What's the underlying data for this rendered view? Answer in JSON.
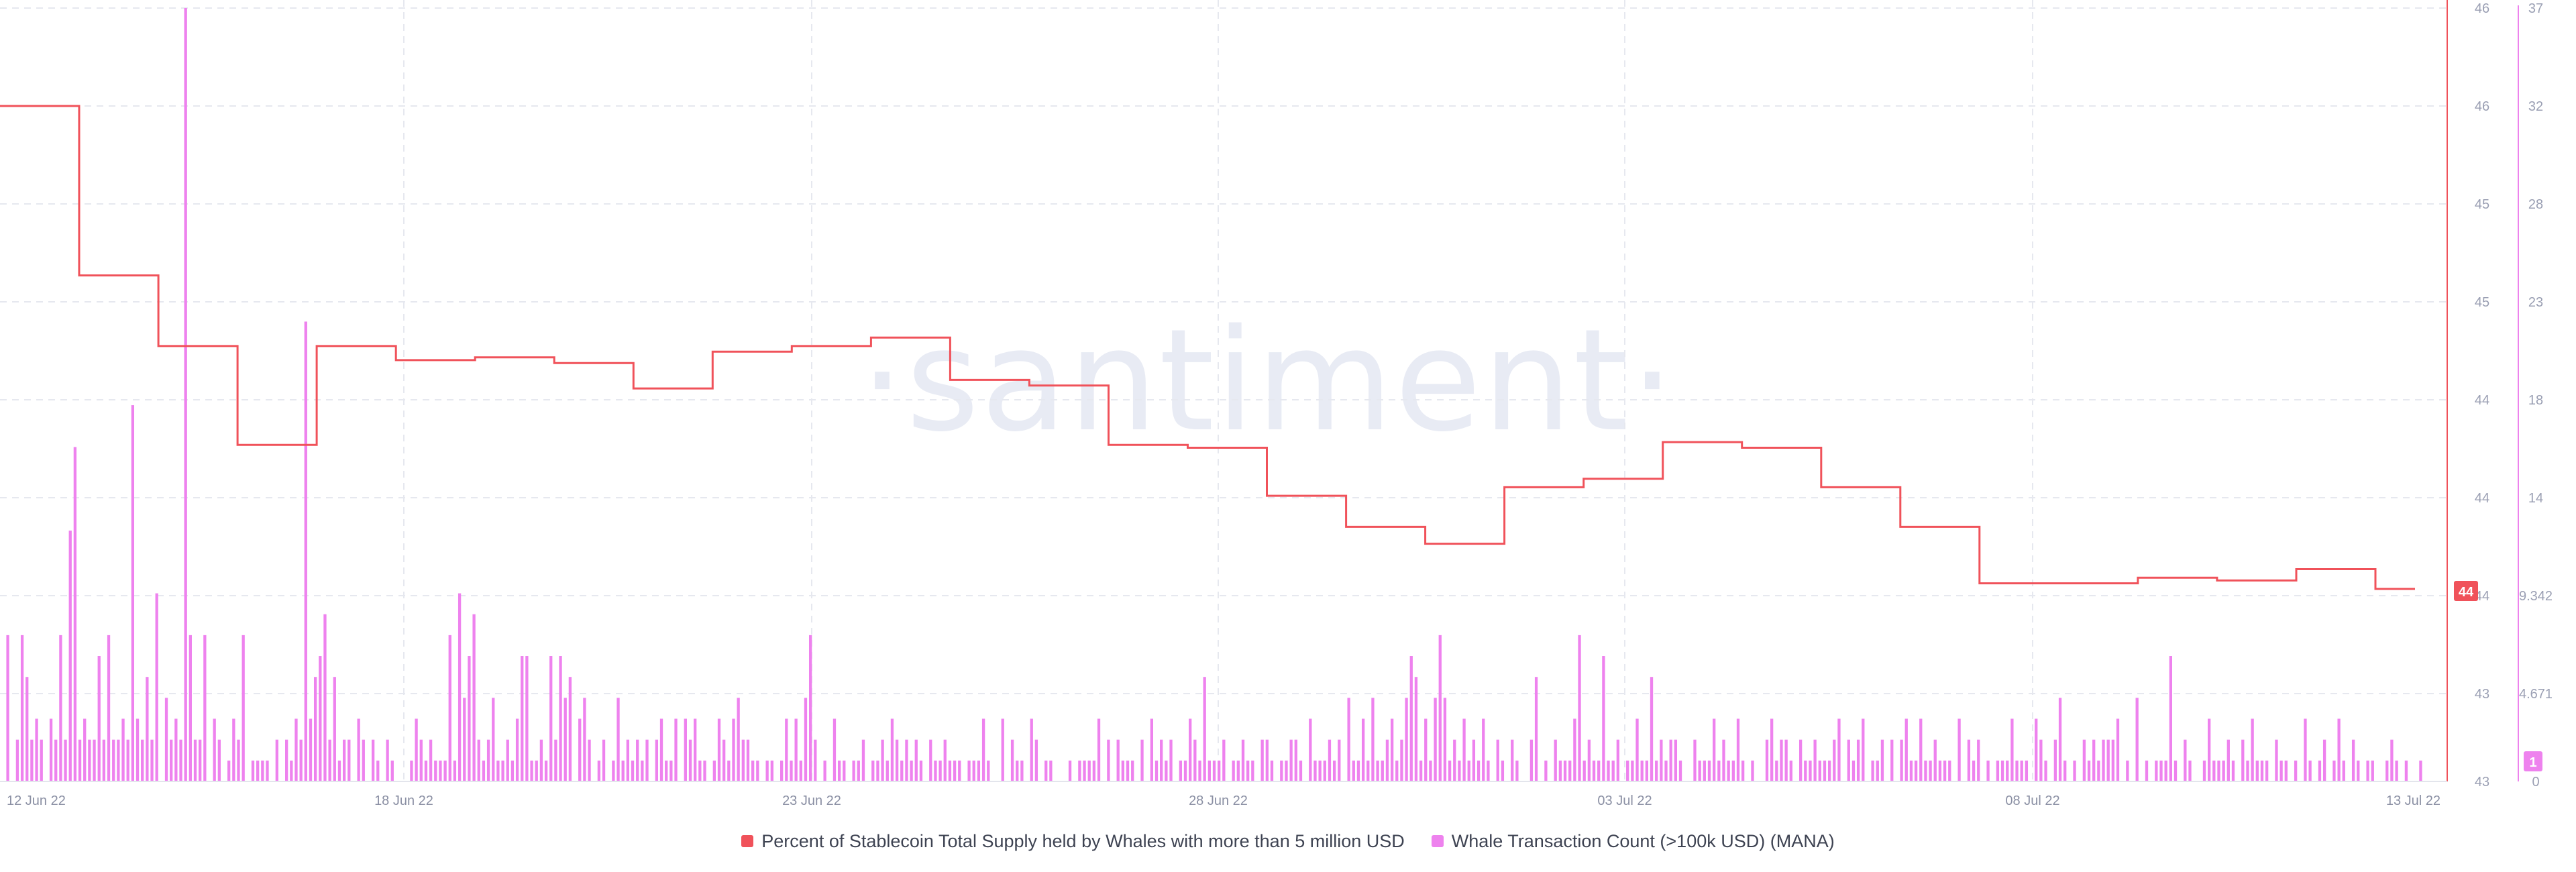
{
  "watermark": "·santiment·",
  "legend": [
    {
      "label": "Percent of Stablecoin Total Supply held by Whales with more than 5 million USD",
      "color": "#f0525a"
    },
    {
      "label": "Whale Transaction Count (>100k USD) (MANA)",
      "color": "#ee82ee"
    }
  ],
  "last_value_badges": {
    "red": "44",
    "pink": "1"
  },
  "chart_data": {
    "type": "line+bar",
    "x_axis": {
      "start": "12 Jun 22",
      "end": "13 Jul 22",
      "ticks": [
        "12 Jun 22",
        "18 Jun 22",
        "23 Jun 22",
        "28 Jun 22",
        "03 Jul 22",
        "08 Jul 22",
        "13 Jul 22"
      ]
    },
    "right_axis_red": {
      "ticks": [
        "46",
        "46",
        "45",
        "45",
        "44",
        "44",
        "44",
        "43",
        "43"
      ]
    },
    "right_axis_pink": {
      "ticks": [
        "37",
        "32",
        "28",
        "23",
        "18",
        "14",
        "9.342",
        "4.671",
        "0"
      ],
      "ylim": [
        0,
        37
      ]
    },
    "stablecoin_percent_series": {
      "name": "Percent of Stablecoin Total Supply held by Whales with more than 5 million USD",
      "color": "#f0525a",
      "steps": [
        46.1,
        45.5,
        45.25,
        44.9,
        45.25,
        45.2,
        45.21,
        45.19,
        45.1,
        45.23,
        45.25,
        45.28,
        45.13,
        45.11,
        44.9,
        44.89,
        44.72,
        44.61,
        44.55,
        44.75,
        44.78,
        44.91,
        44.89,
        44.75,
        44.61,
        44.41,
        44.41,
        44.43,
        44.42,
        44.46,
        44.39
      ],
      "last_value": 44
    },
    "whale_tx_series": {
      "name": "Whale Transaction Count (>100k USD) (MANA)",
      "color": "#ee82ee",
      "values": [
        7,
        0,
        2,
        7,
        5,
        2,
        3,
        2,
        0,
        3,
        2,
        7,
        2,
        12,
        16,
        2,
        3,
        2,
        2,
        6,
        2,
        7,
        2,
        2,
        3,
        2,
        18,
        3,
        2,
        5,
        2,
        9,
        0,
        4,
        2,
        3,
        2,
        37,
        7,
        2,
        2,
        7,
        0,
        3,
        2,
        0,
        1,
        3,
        2,
        7,
        0,
        1,
        1,
        1,
        1,
        0,
        2,
        0,
        2,
        1,
        3,
        2,
        22,
        3,
        5,
        6,
        8,
        2,
        5,
        1,
        2,
        2,
        0,
        3,
        2,
        0,
        2,
        1,
        0,
        2,
        1,
        0,
        0,
        0,
        1,
        3,
        2,
        1,
        2,
        1,
        1,
        1,
        7,
        1,
        9,
        4,
        6,
        8,
        2,
        1,
        2,
        4,
        1,
        1,
        2,
        1,
        3,
        6,
        6,
        1,
        1,
        2,
        1,
        6,
        2,
        6,
        4,
        5,
        0,
        3,
        4,
        2,
        0,
        1,
        2,
        0,
        1,
        4,
        1,
        2,
        1,
        2,
        1,
        2,
        0,
        2,
        3,
        1,
        1,
        3,
        0,
        3,
        2,
        3,
        1,
        1,
        0,
        1,
        3,
        2,
        1,
        3,
        4,
        2,
        2,
        1,
        1,
        0,
        1,
        1,
        0,
        1,
        3,
        1,
        3,
        1,
        4,
        7,
        2,
        0,
        1,
        0,
        3,
        1,
        1,
        0,
        1,
        1,
        2,
        0,
        1,
        1,
        2,
        1,
        3,
        2,
        1,
        2,
        1,
        2,
        1,
        0,
        2,
        1,
        1,
        2,
        1,
        1,
        1,
        0,
        1,
        1,
        1,
        3,
        1,
        0,
        0,
        3,
        0,
        2,
        1,
        1,
        0,
        3,
        2,
        0,
        1,
        1,
        0,
        0,
        0,
        1,
        0,
        1,
        1,
        1,
        1,
        3,
        0,
        2,
        0,
        2,
        1,
        1,
        1,
        0,
        2,
        0,
        3,
        1,
        2,
        1,
        2,
        0,
        1,
        1,
        3,
        2,
        1,
        5,
        1,
        1,
        1,
        2,
        0,
        1,
        1,
        2,
        1,
        1,
        0,
        2,
        2,
        1,
        0,
        1,
        1,
        2,
        2,
        1,
        0,
        3,
        1,
        1,
        1,
        2,
        1,
        2,
        0,
        4,
        1,
        1,
        3,
        1,
        4,
        1,
        1,
        2,
        3,
        1,
        2,
        4,
        6,
        5,
        1,
        3,
        1,
        4,
        7,
        4,
        1,
        2,
        1,
        3,
        1,
        2,
        1,
        3,
        1,
        0,
        2,
        1,
        0,
        2,
        1,
        0,
        0,
        2,
        5,
        0,
        1,
        0,
        2,
        1,
        1,
        1,
        3,
        7,
        1,
        2,
        1,
        1,
        6,
        1,
        1,
        2,
        0,
        1,
        1,
        3,
        1,
        1,
        5,
        1,
        2,
        1,
        2,
        2,
        1,
        0,
        0,
        2,
        1,
        1,
        1,
        3,
        1,
        2,
        1,
        1,
        3,
        1,
        0,
        1,
        0,
        0,
        2,
        3,
        1,
        2,
        2,
        1,
        0,
        2,
        1,
        1,
        2,
        1,
        1,
        1,
        2,
        3,
        0,
        2,
        1,
        2,
        3,
        0,
        1,
        1,
        2,
        0,
        2,
        0,
        2,
        3,
        1,
        1,
        3,
        1,
        1,
        2,
        1,
        1,
        1,
        0,
        3,
        0,
        2,
        1,
        2,
        0,
        1,
        0,
        1,
        1,
        1,
        3,
        1,
        1,
        1,
        0,
        3,
        2,
        1,
        0,
        2,
        4,
        1,
        0,
        1,
        0,
        2,
        1,
        2,
        1,
        2,
        2,
        2,
        3,
        0,
        1,
        0,
        4,
        0,
        1,
        0,
        1,
        1,
        1,
        6,
        1,
        0,
        2,
        1,
        0,
        0,
        1,
        3,
        1,
        1,
        1,
        2,
        1,
        0,
        2,
        1,
        3,
        1,
        1,
        1,
        0,
        2,
        1,
        1,
        0,
        1,
        0,
        3,
        1,
        0,
        1,
        2,
        0,
        1,
        3,
        1,
        0,
        2,
        1,
        0,
        1,
        1,
        0,
        0,
        1,
        2,
        1,
        0,
        1,
        0,
        0,
        1
      ],
      "ylim": [
        0,
        37
      ],
      "last_value": 1
    }
  }
}
